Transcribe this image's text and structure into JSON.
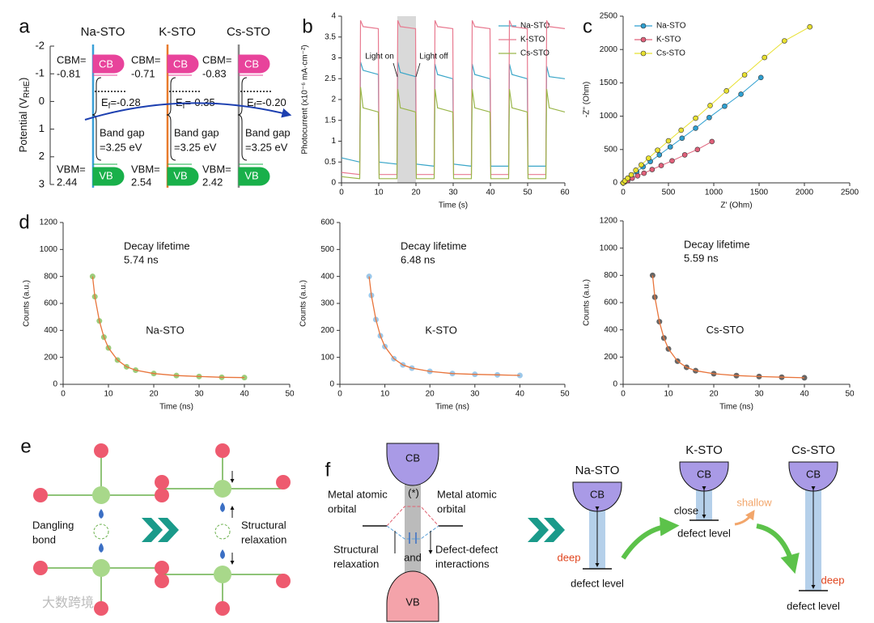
{
  "chart_data": [
    {
      "type": "line",
      "letter": "b",
      "x_label": "Time (s)",
      "y_label": "Photocurrent (x10⁻⁶ mA·cm⁻²)",
      "xlim": [
        0,
        60
      ],
      "xticks": [
        0,
        10,
        20,
        30,
        40,
        50,
        60
      ],
      "ylim": [
        0,
        4
      ],
      "yticks": [
        0,
        0.5,
        1,
        1.5,
        2,
        2.5,
        3,
        3.5,
        4
      ],
      "legend": "upper right",
      "shade": [
        15,
        20
      ],
      "shade_color": "#d9d9d9",
      "annotations": [
        "Light on",
        "Light off"
      ],
      "x": [
        0,
        4.9,
        5.1,
        5.8,
        9.9,
        10.1,
        14.9,
        15.1,
        15.8,
        19.9,
        20.1,
        24.9,
        25.1,
        25.8,
        29.9,
        30.1,
        34.9,
        35.1,
        35.8,
        39.9,
        40.1,
        44.9,
        45.1,
        45.8,
        49.9,
        50.1,
        54.9,
        55.1,
        55.8,
        60
      ],
      "series": [
        {
          "name": "Na-STO",
          "color": "#3aa6c8",
          "values": [
            0.6,
            0.5,
            2.9,
            2.7,
            2.6,
            0.5,
            0.45,
            2.9,
            2.65,
            2.55,
            0.45,
            0.4,
            2.85,
            2.6,
            2.5,
            0.45,
            0.4,
            2.85,
            2.6,
            2.5,
            0.4,
            0.4,
            2.85,
            2.6,
            2.5,
            0.4,
            0.4,
            2.8,
            2.55,
            2.5
          ]
        },
        {
          "name": "K-STO",
          "color": "#e87a90",
          "values": [
            0.25,
            0.2,
            3.9,
            3.75,
            3.7,
            0.2,
            0.2,
            3.9,
            3.75,
            3.7,
            0.2,
            0.2,
            3.9,
            3.75,
            3.7,
            0.2,
            0.2,
            3.9,
            3.75,
            3.7,
            0.2,
            0.2,
            3.9,
            3.75,
            3.7,
            0.2,
            0.2,
            3.9,
            3.75,
            3.7
          ]
        },
        {
          "name": "Cs-STO",
          "color": "#9ab64a",
          "values": [
            0.15,
            0.1,
            2.3,
            1.8,
            1.7,
            0.1,
            0.1,
            2.25,
            1.8,
            1.7,
            0.1,
            0.1,
            2.25,
            1.8,
            1.7,
            0.1,
            0.1,
            2.25,
            1.8,
            1.7,
            0.1,
            0.1,
            2.25,
            1.8,
            1.7,
            0.1,
            0.1,
            2.25,
            1.8,
            1.7
          ]
        }
      ]
    },
    {
      "type": "line",
      "markers": true,
      "letter": "c",
      "x_label": "Z' (Ohm)",
      "y_label": "-Z'' (Ohm)",
      "xlim": [
        0,
        2500
      ],
      "xticks": [
        0,
        500,
        1000,
        1500,
        2000,
        2500
      ],
      "ylim": [
        0,
        2500
      ],
      "yticks": [
        0,
        500,
        1000,
        1500,
        2000,
        2500
      ],
      "legend": "upper left",
      "series": [
        {
          "name": "Na-STO",
          "color": "#2e9fd0",
          "x": [
            0,
            20,
            50,
            90,
            150,
            220,
            300,
            400,
            520,
            650,
            800,
            950,
            1120,
            1300,
            1520
          ],
          "values": [
            0,
            25,
            60,
            100,
            165,
            240,
            320,
            420,
            540,
            670,
            820,
            980,
            1150,
            1330,
            1580
          ]
        },
        {
          "name": "K-STO",
          "color": "#e0607a",
          "x": [
            0,
            20,
            50,
            100,
            160,
            230,
            320,
            420,
            540,
            680,
            820,
            980
          ],
          "values": [
            0,
            15,
            35,
            70,
            105,
            145,
            200,
            260,
            330,
            420,
            500,
            620
          ]
        },
        {
          "name": "Cs-STO",
          "color": "#e8e030",
          "x": [
            0,
            20,
            50,
            90,
            140,
            200,
            280,
            380,
            500,
            640,
            800,
            960,
            1140,
            1340,
            1560,
            1780,
            2060
          ],
          "values": [
            0,
            30,
            70,
            120,
            190,
            270,
            370,
            490,
            630,
            790,
            970,
            1160,
            1380,
            1620,
            1880,
            2130,
            2340
          ]
        }
      ]
    },
    {
      "type": "scatter",
      "fit": true,
      "fit_color": "#e8743b",
      "letter": "d",
      "x_label": "Time (ns)",
      "y_label": "Counts (a.u.)",
      "xlim": [
        0,
        50
      ],
      "xticks": [
        0,
        10,
        20,
        30,
        40,
        50
      ],
      "ylim": [
        0,
        1200
      ],
      "yticks": [
        0,
        200,
        400,
        600,
        800,
        1000,
        1200
      ],
      "annotations": [
        "Decay lifetime",
        "5.74 ns"
      ],
      "x": [
        6.5,
        7,
        8,
        9,
        10,
        12,
        14,
        16,
        20,
        25,
        30,
        35,
        40
      ],
      "series": [
        {
          "name": "Na-STO",
          "color": "#9ccc7a",
          "values": [
            800,
            650,
            470,
            350,
            270,
            180,
            130,
            105,
            80,
            65,
            58,
            52,
            50
          ]
        }
      ]
    },
    {
      "type": "scatter",
      "fit": true,
      "fit_color": "#e8743b",
      "x_label": "Time (ns)",
      "y_label": "Counts (a.u.)",
      "xlim": [
        0,
        50
      ],
      "xticks": [
        0,
        10,
        20,
        30,
        40,
        50
      ],
      "ylim": [
        0,
        600
      ],
      "yticks": [
        0,
        100,
        200,
        300,
        400,
        500,
        600
      ],
      "annotations": [
        "Decay lifetime",
        "6.48 ns"
      ],
      "x": [
        6.5,
        7,
        8,
        9,
        10,
        12,
        14,
        16,
        20,
        25,
        30,
        35,
        40
      ],
      "series": [
        {
          "name": "K-STO",
          "color": "#9cc8ea",
          "values": [
            400,
            330,
            240,
            180,
            140,
            95,
            72,
            60,
            48,
            40,
            37,
            35,
            33
          ]
        }
      ]
    },
    {
      "type": "scatter",
      "fit": true,
      "fit_color": "#e8743b",
      "x_label": "Time (ns)",
      "y_label": "Counts (a.u.)",
      "xlim": [
        0,
        50
      ],
      "xticks": [
        0,
        10,
        20,
        30,
        40,
        50
      ],
      "ylim": [
        0,
        1200
      ],
      "yticks": [
        0,
        200,
        400,
        600,
        800,
        1000,
        1200
      ],
      "annotations": [
        "Decay lifetime",
        "5.59 ns"
      ],
      "x": [
        6.5,
        7,
        8,
        9,
        10,
        12,
        14,
        16,
        20,
        25,
        30,
        35,
        40
      ],
      "series": [
        {
          "name": "Cs-STO",
          "color": "#666666",
          "values": [
            800,
            640,
            460,
            340,
            260,
            170,
            125,
            100,
            78,
            64,
            57,
            52,
            48
          ]
        }
      ]
    }
  ],
  "panel_a": {
    "letter": "a",
    "y_label": [
      "Potential (V",
      "RHE",
      ")"
    ],
    "ylim": [
      -2,
      3
    ],
    "yticks": [
      -2,
      -1,
      0,
      1,
      2,
      3
    ],
    "band_labels": [
      "CB",
      "VB"
    ],
    "samples": [
      {
        "name": "Na-STO",
        "cbm_label": "CBM=",
        "cbm": "-0.81",
        "ef_symbol": "E",
        "ef_sub": "f",
        "ef": "=-0.28",
        "gap": "Band gap",
        "gap_value": "=3.25 eV",
        "vbm_label": "VBM=",
        "vbm": "2.44"
      },
      {
        "name": "K-STO",
        "cbm_label": "CBM=",
        "cbm": "-0.71",
        "ef_symbol": "E",
        "ef_sub": "f",
        "ef": "=-0.35",
        "gap": "Band gap",
        "gap_value": "=3.25 eV",
        "vbm_label": "VBM=",
        "vbm": "2.54"
      },
      {
        "name": "Cs-STO",
        "cbm_label": "CBM=",
        "cbm": "-0.83",
        "ef_symbol": "E",
        "ef_sub": "f",
        "ef": "=-0.20",
        "gap": "Band gap",
        "gap_value": "=3.25 eV",
        "vbm_label": "VBM=",
        "vbm": "2.42"
      }
    ]
  },
  "panel_e": {
    "letter": "e",
    "left": [
      "Dangling",
      "bond"
    ],
    "right": [
      "Structural",
      "relaxation"
    ]
  },
  "panel_f": {
    "letter": "f",
    "cb": "CB",
    "vb": "VB",
    "star": "(*)",
    "orbital_left": [
      "Metal atomic",
      "orbital"
    ],
    "orbital_right": [
      "Metal atomic",
      "orbital"
    ],
    "relax": [
      "Structural",
      "relaxation"
    ],
    "and": "and",
    "interact": [
      "Defect-defect",
      "interactions"
    ],
    "samples": [
      {
        "name": "Na-STO",
        "cb": "CB",
        "depth": "deep",
        "level": "defect level"
      },
      {
        "name": "K-STO",
        "cb": "CB",
        "depth": "close",
        "level": "defect level",
        "extra": "shallow"
      },
      {
        "name": "Cs-STO",
        "cb": "CB",
        "depth": "deep",
        "level": "defect level"
      }
    ]
  },
  "watermark": "大数跨境"
}
